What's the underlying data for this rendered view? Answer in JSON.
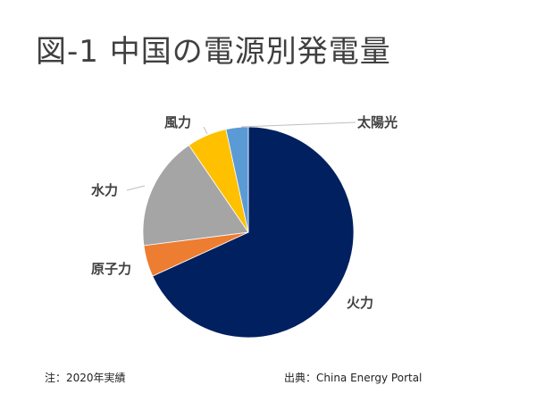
{
  "chart_data": {
    "type": "pie",
    "title": "図-1 中国の電源別発電量",
    "slices": [
      {
        "label": "火力",
        "value": 67.9,
        "color": "#002060"
      },
      {
        "label": "原子力",
        "value": 4.8,
        "color": "#ED7D31"
      },
      {
        "label": "水力",
        "value": 17.4,
        "color": "#A5A5A5"
      },
      {
        "label": "風力",
        "value": 6.1,
        "color": "#FFC000"
      },
      {
        "label": "太陽光",
        "value": 3.4,
        "color": "#5B9BD5"
      }
    ],
    "start": "top",
    "direction": "clockwise",
    "legend": "none"
  },
  "notes": {
    "left": "注：2020年実績",
    "right": "出典：China Energy Portal"
  }
}
